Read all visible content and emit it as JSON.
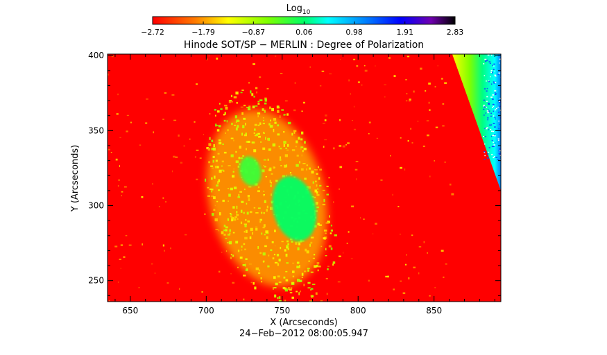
{
  "chart_data": {
    "type": "heatmap",
    "title": "Hinode SOT/SP − MERLIN : Degree of Polarization",
    "subtitle": "24−Feb−2012 08:00:05.947",
    "xlabel": "X (Arcseconds)",
    "ylabel": "Y (Arcseconds)",
    "xlim": [
      635,
      894
    ],
    "ylim": [
      236,
      401
    ],
    "x_ticks": [
      "650",
      "700",
      "750",
      "800",
      "850"
    ],
    "x_tick_values": [
      650,
      700,
      750,
      800,
      850
    ],
    "y_ticks": [
      "250",
      "300",
      "350",
      "400"
    ],
    "y_tick_values": [
      250,
      300,
      350,
      400
    ],
    "colorbar": {
      "title": "Log",
      "title_sub": "10",
      "range": [
        -2.72,
        2.83
      ],
      "ticks": [
        "−2.72",
        "−1.79",
        "−0.87",
        "0.06",
        "0.98",
        "1.91",
        "2.83"
      ],
      "tick_values": [
        -2.72,
        -1.79,
        -0.87,
        0.06,
        0.98,
        1.91,
        2.83
      ]
    },
    "background_color": "#ff0000",
    "features": [
      {
        "shape": "ellipse",
        "cx": 758,
        "cy": 298,
        "rx": 14,
        "ry": 22,
        "level": 0.05
      },
      {
        "shape": "ellipse",
        "cx": 729,
        "cy": 323,
        "rx": 7,
        "ry": 10,
        "level": -0.25
      },
      {
        "shape": "ellipse",
        "cx": 740,
        "cy": 305,
        "rx": 38,
        "ry": 60,
        "level": -1.3
      }
    ],
    "edge_band": {
      "x_top": [
        862,
        894
      ],
      "x_bottom": [
        894,
        894
      ],
      "y_range": [
        310,
        401
      ],
      "level": 0.2
    }
  }
}
